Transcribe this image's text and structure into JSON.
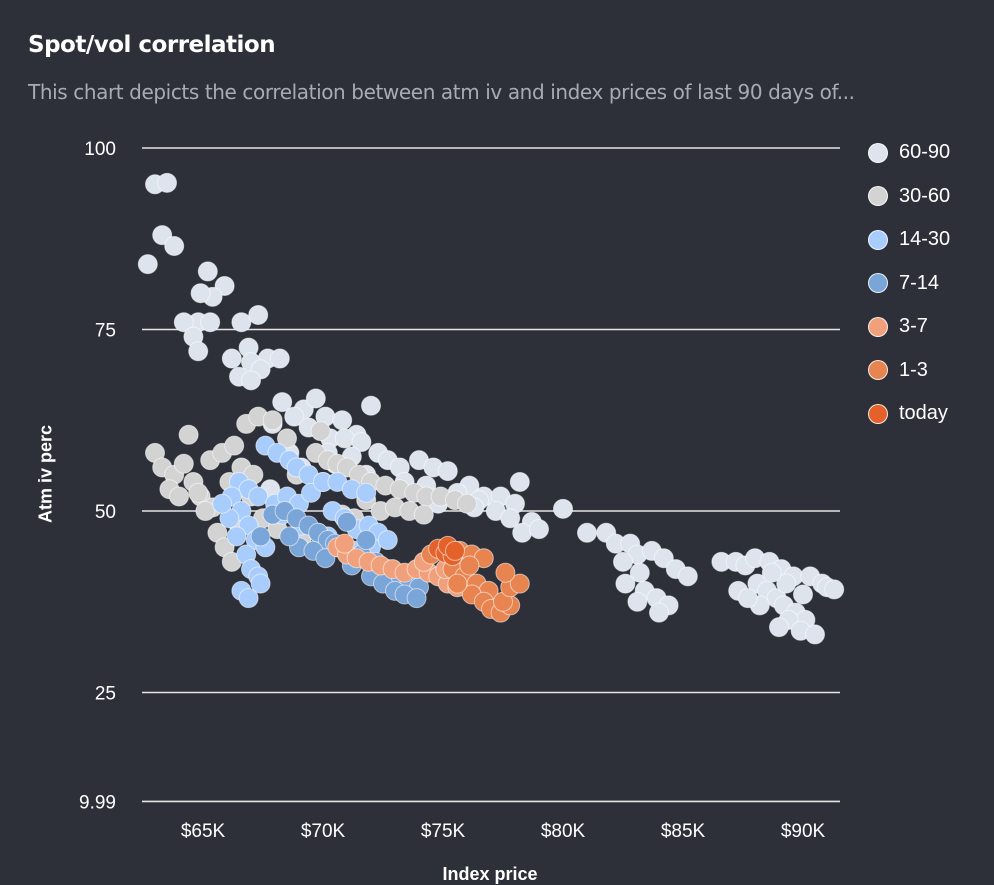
{
  "header": {
    "title": "Spot/vol correlation",
    "subtitle": "This chart depicts the correlation between atm iv and index prices of last 90 days of..."
  },
  "chart_data": {
    "type": "scatter",
    "title": "Spot/vol correlation",
    "xlabel": "Index price",
    "ylabel": "Atm iv perc",
    "xlim": [
      62500,
      91500
    ],
    "ylim": [
      9.99,
      100
    ],
    "x_ticks": [
      65000,
      70000,
      75000,
      80000,
      85000,
      90000
    ],
    "x_tick_labels": [
      "$65K",
      "$70K",
      "$75K",
      "$80K",
      "$85K",
      "$90K"
    ],
    "y_ticks": [
      9.99,
      25,
      50,
      75,
      100
    ],
    "y_tick_labels": [
      "9.99",
      "25",
      "50",
      "75",
      "100"
    ],
    "grid": "horizontal",
    "legend_position": "right",
    "series": [
      {
        "name": "60-90",
        "color": "#dde4ee",
        "points": [
          [
            63000,
            95
          ],
          [
            63500,
            95.2
          ],
          [
            63300,
            88
          ],
          [
            63800,
            86.5
          ],
          [
            62700,
            84
          ],
          [
            65200,
            83
          ],
          [
            65900,
            81
          ],
          [
            65400,
            79.5
          ],
          [
            64900,
            80
          ],
          [
            64800,
            76
          ],
          [
            64200,
            76
          ],
          [
            65300,
            76
          ],
          [
            64600,
            74
          ],
          [
            66600,
            76
          ],
          [
            64800,
            72
          ],
          [
            66900,
            72.5
          ],
          [
            67300,
            77
          ],
          [
            67700,
            71
          ],
          [
            66200,
            71
          ],
          [
            67000,
            70.5
          ],
          [
            66500,
            68.5
          ],
          [
            67400,
            69.5
          ],
          [
            67000,
            68
          ],
          [
            68200,
            71
          ],
          [
            68300,
            65
          ],
          [
            69200,
            64
          ],
          [
            69700,
            65.5
          ],
          [
            70100,
            63
          ],
          [
            70800,
            62.5
          ],
          [
            72000,
            64.5
          ],
          [
            71400,
            60.5
          ],
          [
            68800,
            63
          ],
          [
            69400,
            61.5
          ],
          [
            67900,
            62
          ],
          [
            70300,
            60
          ],
          [
            70900,
            60
          ],
          [
            71600,
            59.5
          ],
          [
            72300,
            58
          ],
          [
            72700,
            57
          ],
          [
            73200,
            56
          ],
          [
            74000,
            57
          ],
          [
            74600,
            56
          ],
          [
            75200,
            55.5
          ],
          [
            73400,
            54
          ],
          [
            74300,
            53.5
          ],
          [
            76100,
            53.5
          ],
          [
            76700,
            52
          ],
          [
            77400,
            52
          ],
          [
            78200,
            54
          ],
          [
            78000,
            51
          ],
          [
            77200,
            50
          ],
          [
            76500,
            51.5
          ],
          [
            77800,
            49
          ],
          [
            78700,
            48.5
          ],
          [
            78300,
            47
          ],
          [
            79000,
            47.5
          ],
          [
            75600,
            52.5
          ],
          [
            76300,
            50.5
          ],
          [
            74800,
            51
          ],
          [
            80000,
            50.3
          ],
          [
            81000,
            47
          ],
          [
            81800,
            47
          ],
          [
            82200,
            45.5
          ],
          [
            82800,
            45.5
          ],
          [
            83100,
            44
          ],
          [
            83700,
            44.5
          ],
          [
            84200,
            43.5
          ],
          [
            84700,
            42
          ],
          [
            85200,
            41
          ],
          [
            82500,
            43
          ],
          [
            83200,
            41.5
          ],
          [
            82600,
            40
          ],
          [
            83400,
            39
          ],
          [
            83900,
            38
          ],
          [
            84400,
            37
          ],
          [
            84000,
            36
          ],
          [
            83100,
            37.5
          ],
          [
            86600,
            43
          ],
          [
            87200,
            43
          ],
          [
            87600,
            42.5
          ],
          [
            88000,
            43.5
          ],
          [
            88600,
            43
          ],
          [
            89100,
            42
          ],
          [
            89600,
            41
          ],
          [
            90300,
            41
          ],
          [
            90800,
            40
          ],
          [
            87300,
            39
          ],
          [
            88100,
            40
          ],
          [
            88500,
            39
          ],
          [
            88900,
            38
          ],
          [
            89200,
            37
          ],
          [
            89700,
            36
          ],
          [
            90100,
            35
          ],
          [
            89400,
            35
          ],
          [
            89900,
            33.5
          ],
          [
            90500,
            33
          ],
          [
            89000,
            34
          ],
          [
            88200,
            37
          ],
          [
            87700,
            38
          ],
          [
            91000,
            39.5
          ],
          [
            90000,
            38.5
          ],
          [
            89300,
            40
          ],
          [
            88700,
            41.5
          ],
          [
            91300,
            39.2
          ],
          [
            67800,
            53
          ],
          [
            69100,
            56
          ],
          [
            70500,
            56.5
          ],
          [
            71800,
            55
          ],
          [
            68600,
            58
          ],
          [
            70200,
            58
          ],
          [
            71200,
            57.5
          ]
        ]
      },
      {
        "name": "30-60",
        "color": "#d3d3d3",
        "points": [
          [
            63000,
            58
          ],
          [
            63300,
            56
          ],
          [
            63800,
            55
          ],
          [
            64200,
            56.5
          ],
          [
            63600,
            53
          ],
          [
            64000,
            52
          ],
          [
            64600,
            54
          ],
          [
            64900,
            52
          ],
          [
            65400,
            50.5
          ],
          [
            64400,
            60.5
          ],
          [
            65300,
            57
          ],
          [
            65800,
            58
          ],
          [
            66300,
            59
          ],
          [
            66800,
            62
          ],
          [
            67300,
            63
          ],
          [
            67900,
            62.5
          ],
          [
            68500,
            60
          ],
          [
            66600,
            56
          ],
          [
            67100,
            55
          ],
          [
            66100,
            54
          ],
          [
            65600,
            47
          ],
          [
            65900,
            45
          ],
          [
            66200,
            43
          ],
          [
            67500,
            49
          ],
          [
            68100,
            47.5
          ],
          [
            68700,
            46.5
          ],
          [
            69100,
            46
          ],
          [
            69700,
            58
          ],
          [
            70200,
            57
          ],
          [
            70600,
            56.5
          ],
          [
            71000,
            56
          ],
          [
            71500,
            55
          ],
          [
            72000,
            54
          ],
          [
            72600,
            53.5
          ],
          [
            73200,
            53
          ],
          [
            73800,
            52.5
          ],
          [
            74300,
            52
          ],
          [
            74900,
            52
          ],
          [
            75500,
            51.5
          ],
          [
            76000,
            51
          ],
          [
            71800,
            51.5
          ],
          [
            72400,
            50
          ],
          [
            73000,
            50.5
          ],
          [
            73600,
            50
          ],
          [
            74200,
            49.5
          ],
          [
            70800,
            49.5
          ],
          [
            71300,
            49
          ],
          [
            65100,
            50
          ],
          [
            64800,
            52.5
          ],
          [
            69900,
            61
          ],
          [
            68900,
            55
          ],
          [
            70000,
            54
          ],
          [
            67000,
            52
          ],
          [
            66500,
            48
          ]
        ]
      },
      {
        "name": "14-30",
        "color": "#a8cdfc",
        "points": [
          [
            67600,
            59
          ],
          [
            68100,
            58
          ],
          [
            68600,
            57
          ],
          [
            68900,
            56
          ],
          [
            69400,
            55
          ],
          [
            66500,
            54
          ],
          [
            66900,
            53
          ],
          [
            67300,
            52
          ],
          [
            66200,
            52
          ],
          [
            66600,
            50
          ],
          [
            66900,
            48
          ],
          [
            67200,
            46
          ],
          [
            67600,
            45
          ],
          [
            66800,
            44
          ],
          [
            67000,
            42
          ],
          [
            67300,
            41
          ],
          [
            66600,
            39
          ],
          [
            66900,
            38
          ],
          [
            67400,
            40
          ],
          [
            68000,
            51
          ],
          [
            68500,
            52
          ],
          [
            69000,
            51
          ],
          [
            69500,
            52.5
          ],
          [
            70000,
            54
          ],
          [
            70600,
            54
          ],
          [
            71200,
            53
          ],
          [
            71800,
            52.5
          ],
          [
            70400,
            50
          ],
          [
            70900,
            49
          ],
          [
            71400,
            47.5
          ],
          [
            71900,
            48
          ],
          [
            72300,
            47
          ],
          [
            72000,
            45
          ],
          [
            70200,
            46.5
          ],
          [
            69100,
            48
          ],
          [
            68300,
            49.5
          ],
          [
            69800,
            47
          ],
          [
            70600,
            45
          ],
          [
            71300,
            44.5
          ],
          [
            72700,
            46
          ],
          [
            66100,
            49
          ],
          [
            65800,
            51
          ],
          [
            66400,
            46.5
          ]
        ]
      },
      {
        "name": "7-14",
        "color": "#7aa5d8",
        "points": [
          [
            67400,
            46.5
          ],
          [
            67900,
            49.5
          ],
          [
            68400,
            50
          ],
          [
            68900,
            49
          ],
          [
            69400,
            48
          ],
          [
            69800,
            47
          ],
          [
            70200,
            46
          ],
          [
            70500,
            45.5
          ],
          [
            71000,
            48.5
          ],
          [
            69000,
            45
          ],
          [
            69600,
            44.5
          ],
          [
            70100,
            43.5
          ],
          [
            68600,
            46.5
          ],
          [
            71600,
            44
          ],
          [
            72200,
            43
          ],
          [
            72700,
            42
          ],
          [
            73100,
            41
          ],
          [
            73600,
            40
          ],
          [
            74000,
            39.5
          ],
          [
            71200,
            42.5
          ],
          [
            72000,
            41
          ],
          [
            72500,
            40
          ],
          [
            73000,
            39
          ],
          [
            73400,
            38.5
          ],
          [
            73900,
            38
          ],
          [
            71800,
            46
          ]
        ]
      },
      {
        "name": "3-7",
        "color": "#f0a07a",
        "points": [
          [
            70600,
            45
          ],
          [
            71000,
            44
          ],
          [
            71400,
            43.5
          ],
          [
            71900,
            43
          ],
          [
            72400,
            42.5
          ],
          [
            72900,
            42
          ],
          [
            73400,
            41.5
          ],
          [
            73900,
            42
          ],
          [
            74400,
            41.5
          ],
          [
            74800,
            41
          ],
          [
            75200,
            40
          ],
          [
            75600,
            39.5
          ],
          [
            75100,
            42
          ],
          [
            74200,
            43
          ],
          [
            70900,
            45.5
          ]
        ]
      },
      {
        "name": "1-3",
        "color": "#e8844f",
        "points": [
          [
            74500,
            44
          ],
          [
            75000,
            44.5
          ],
          [
            75700,
            44.5
          ],
          [
            76200,
            44
          ],
          [
            76700,
            43.5
          ],
          [
            75400,
            42
          ],
          [
            75900,
            41
          ],
          [
            76400,
            40
          ],
          [
            76900,
            39
          ],
          [
            76200,
            38.5
          ],
          [
            76700,
            37.5
          ],
          [
            77000,
            36.5
          ],
          [
            77400,
            36
          ],
          [
            77800,
            37
          ],
          [
            77500,
            37.5
          ],
          [
            77800,
            39.5
          ],
          [
            78200,
            40
          ],
          [
            77600,
            41.5
          ],
          [
            76100,
            42.5
          ],
          [
            75600,
            40
          ]
        ]
      },
      {
        "name": "today",
        "color": "#e4612a",
        "points": [
          [
            74800,
            44.8
          ],
          [
            75100,
            44.2
          ],
          [
            75400,
            43.8
          ],
          [
            75200,
            45.2
          ],
          [
            75500,
            44.5
          ]
        ]
      }
    ]
  }
}
